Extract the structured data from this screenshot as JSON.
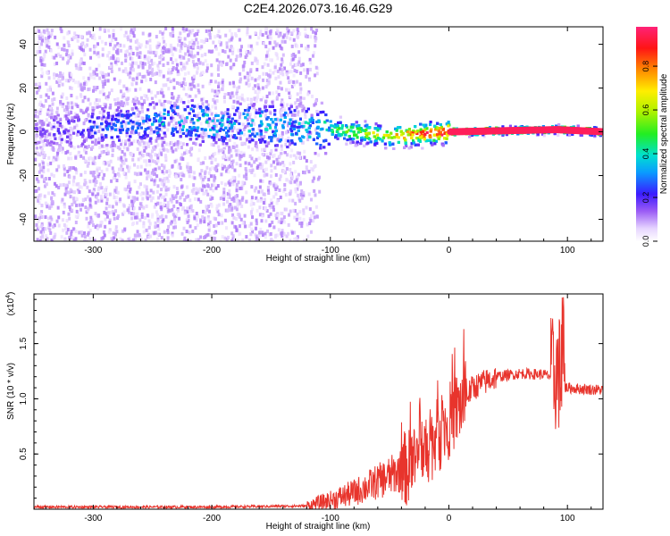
{
  "title": "C2E4.2026.073.16.46.G29",
  "chart_data": [
    {
      "type": "heatmap",
      "title": "C2E4.2026.073.16.46.G29",
      "xlabel": "Height of straight line (km)",
      "ylabel": "Frequency (Hz)",
      "xlim": [
        -350,
        130
      ],
      "ylim": [
        -50,
        48
      ],
      "xticks": [
        -300,
        -200,
        -100,
        0,
        100
      ],
      "yticks": [
        -40,
        -20,
        0,
        20,
        40
      ],
      "colorbar": {
        "label": "Normalized spectral amplitude",
        "range": [
          0,
          0.98
        ],
        "ticks": [
          0.0,
          0.2,
          0.4,
          0.6,
          0.8
        ],
        "tick_labels": [
          "0.0",
          "0.2",
          "0.4",
          "0.6",
          "0.8"
        ]
      },
      "description_points": [
        {
          "x": -350,
          "y": 0,
          "amp": 0.15
        },
        {
          "x": -230,
          "y": 5,
          "amp": 0.4
        },
        {
          "x": -100,
          "y": 1,
          "amp": 0.45
        },
        {
          "x": -50,
          "y": -2,
          "amp": 0.7
        },
        {
          "x": 0,
          "y": 0,
          "amp": 0.95
        },
        {
          "x": 90,
          "y": 1,
          "amp": 0.9
        },
        {
          "x": 130,
          "y": 0,
          "amp": 0.95
        }
      ]
    },
    {
      "type": "line",
      "xlabel": "Height of straight line (km)",
      "ylabel": "SNR (10 * v/v)",
      "multiplier_label": "(x10",
      "multiplier_exp": "4",
      "xlim": [
        -350,
        130
      ],
      "ylim": [
        0,
        1.95
      ],
      "xticks": [
        -300,
        -200,
        -100,
        0,
        100
      ],
      "yticks": [
        0.5,
        1.0,
        1.5
      ],
      "ytick_labels": [
        "0.5",
        "1.0",
        "1.5"
      ],
      "series": [
        {
          "name": "SNR",
          "color": "#e8342c",
          "envelope_x": [
            -350,
            -200,
            -120,
            -100,
            -80,
            -60,
            -40,
            -30,
            -20,
            -10,
            0,
            10,
            20,
            40,
            60,
            80,
            88,
            92,
            95,
            98,
            100,
            110,
            130
          ],
          "envelope_y": [
            0.02,
            0.02,
            0.03,
            0.08,
            0.15,
            0.25,
            0.35,
            0.4,
            0.55,
            0.65,
            0.8,
            0.95,
            1.1,
            1.2,
            1.23,
            1.22,
            1.2,
            1.25,
            1.2,
            1.1,
            1.1,
            1.09,
            1.08
          ]
        }
      ]
    }
  ]
}
